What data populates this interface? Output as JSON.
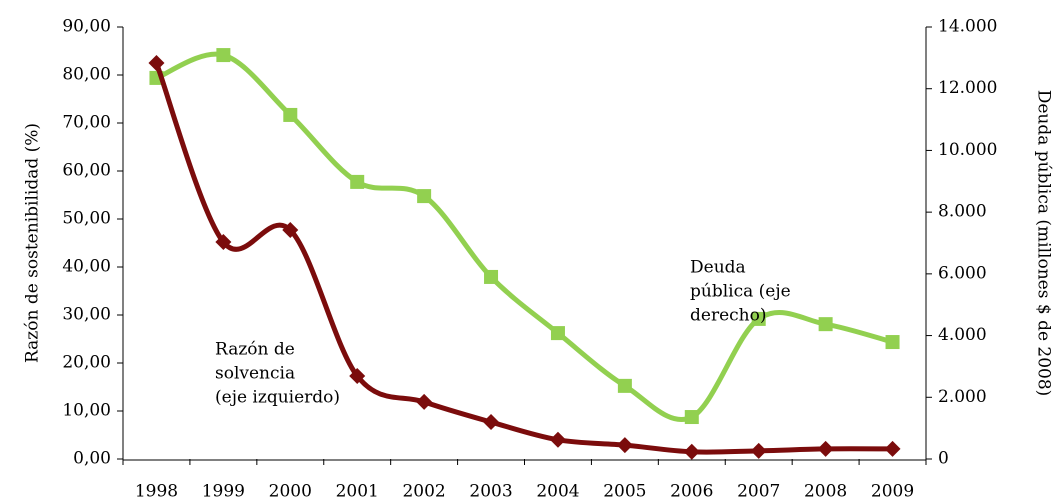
{
  "chart_data": {
    "type": "line",
    "categories": [
      "1998",
      "1999",
      "2000",
      "2001",
      "2002",
      "2003",
      "2004",
      "2005",
      "2006",
      "2007",
      "2008",
      "2009"
    ],
    "series": [
      {
        "name": "Razón de solvencia (eje izquierdo)",
        "color": "#7b0c0c",
        "axis": "y",
        "marker": "diamond",
        "values": [
          82.5,
          45.2,
          47.7,
          17.3,
          11.9,
          7.7,
          4.0,
          2.9,
          1.5,
          1.7,
          2.1,
          2.1
        ]
      },
      {
        "name": "Deuda pública (eje derecho)",
        "color": "#92d050",
        "axis": "y2",
        "marker": "square",
        "values": [
          12350,
          13090,
          11150,
          8980,
          8520,
          5900,
          4080,
          2370,
          1360,
          4540,
          4370,
          3790
        ]
      }
    ],
    "ylabel": "Razón de sostenibilidad (%)",
    "y2label": "Deuda pública (millones $ de 2008)",
    "annotations": [
      {
        "lines": [
          "Deuda",
          "pública (eje",
          "derecho)"
        ]
      },
      {
        "lines": [
          "Razón de",
          "solvencia",
          "(eje izquierdo)"
        ]
      }
    ],
    "ylim": [
      0,
      90
    ],
    "yticks": [
      {
        "value": 0,
        "label": "0,00"
      },
      {
        "value": 10,
        "label": "10,00"
      },
      {
        "value": 20,
        "label": "20,00"
      },
      {
        "value": 30,
        "label": "30,00"
      },
      {
        "value": 40,
        "label": "40,00"
      },
      {
        "value": 50,
        "label": "50,00"
      },
      {
        "value": 60,
        "label": "60,00"
      },
      {
        "value": 70,
        "label": "70,00"
      },
      {
        "value": 80,
        "label": "80,00"
      },
      {
        "value": 90,
        "label": "90,00"
      }
    ],
    "y2lim": [
      0,
      14000
    ],
    "y2ticks": [
      0,
      {
        "value": 2000,
        "label": "2.000"
      },
      {
        "value": 4000,
        "label": "4.000"
      },
      {
        "value": 6000,
        "label": "6.000"
      },
      {
        "value": 8000,
        "label": "8.000"
      },
      {
        "value": 10000,
        "label": "10.000"
      },
      {
        "value": 12000,
        "label": "12.000"
      },
      {
        "value": 14000,
        "label": "14.000"
      }
    ],
    "grid": false
  }
}
